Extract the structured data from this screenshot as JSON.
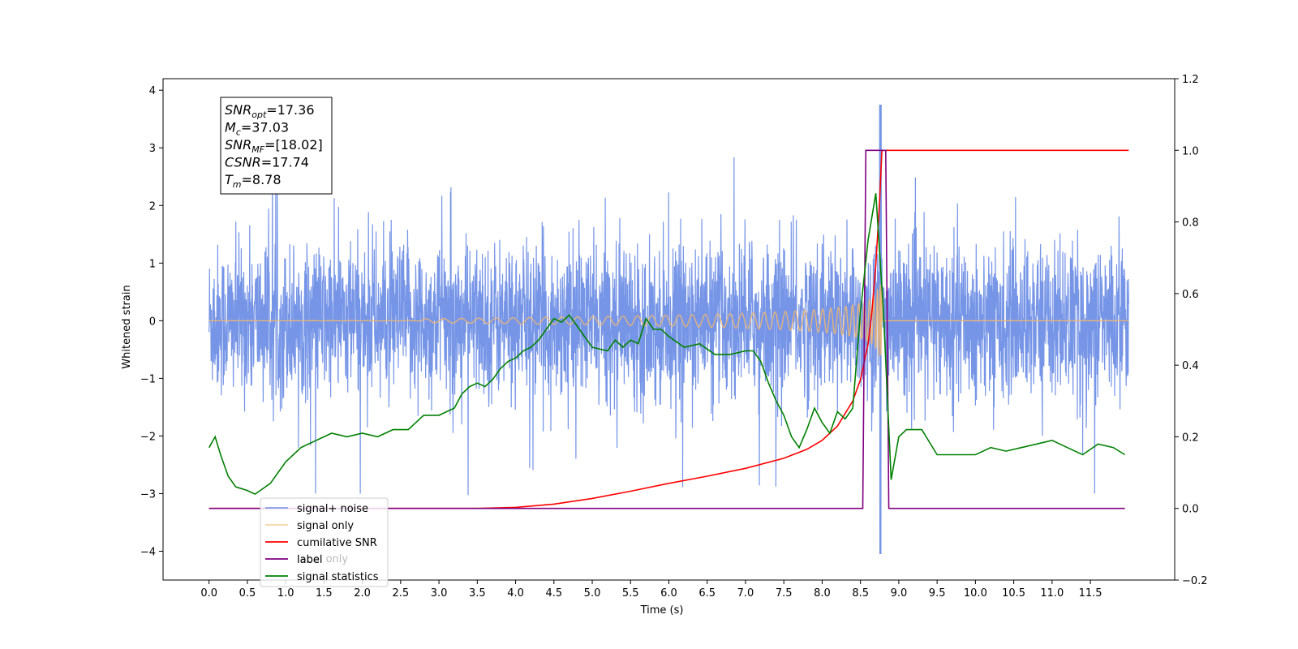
{
  "chart_data": {
    "type": "line",
    "xlabel": "Time (s)",
    "ylabel": "Whitened strain",
    "xlim": [
      -0.6,
      12.6
    ],
    "ylim": [
      -4.5,
      4.2
    ],
    "y2lim": [
      -0.2,
      1.2
    ],
    "xticks": [
      "0.0",
      "0.5",
      "1.0",
      "1.5",
      "2.0",
      "2.5",
      "3.0",
      "3.5",
      "4.0",
      "4.5",
      "5.0",
      "5.5",
      "6.0",
      "6.5",
      "7.0",
      "7.5",
      "8.0",
      "8.5",
      "9.0",
      "9.5",
      "10.0",
      "10.5",
      "11.0",
      "11.5"
    ],
    "yticks": [
      "4",
      "3",
      "2",
      "1",
      "0",
      "−1",
      "−2",
      "−3",
      "−4"
    ],
    "y2ticks": [
      "1.2",
      "1.0",
      "0.8",
      "0.6",
      "0.4",
      "0.2",
      "0.0",
      "−0.2"
    ],
    "grid": false,
    "legend_position": "bottom-left",
    "legend": [
      "signal+ noise",
      "signal only",
      "cumilative SNR",
      "label",
      "signal statistics",
      "label only"
    ],
    "colors": {
      "noise": "#6f8fe6",
      "signal": "#f5b86a",
      "snr": "#ff0000",
      "label": "#800080",
      "stats": "#008000"
    },
    "annotations": [
      {
        "base": "SNR",
        "sub": "opt",
        "value": "=17.36"
      },
      {
        "base": "M",
        "sub": "c",
        "value": "=37.03"
      },
      {
        "base": "SNR",
        "sub": "MF",
        "value": "=[18.02]"
      },
      {
        "base": "CSNR",
        "sub": "",
        "value": "=17.74"
      },
      {
        "base": "T",
        "sub": "m",
        "value": "=8.78"
      }
    ],
    "series": [
      {
        "name": "signal+ noise",
        "axis": "left",
        "description_range": [
          -4.1,
          3.8
        ],
        "t_start": 0.0,
        "t_end": 12.0
      },
      {
        "name": "signal only",
        "axis": "left",
        "merger_time": 8.78
      },
      {
        "name": "cumilative SNR",
        "axis": "right",
        "x": [
          0.0,
          3.5,
          4.0,
          4.5,
          5.0,
          5.5,
          6.0,
          6.5,
          7.0,
          7.5,
          7.8,
          8.0,
          8.2,
          8.4,
          8.5,
          8.6,
          8.65,
          8.7,
          8.75,
          8.78,
          12.0
        ],
        "y": [
          0.0,
          0.0,
          0.003,
          0.012,
          0.028,
          0.048,
          0.07,
          0.09,
          0.112,
          0.14,
          0.165,
          0.19,
          0.23,
          0.3,
          0.36,
          0.46,
          0.55,
          0.68,
          0.86,
          1.0,
          1.0
        ]
      },
      {
        "name": "label",
        "axis": "right",
        "x": [
          0.0,
          8.53,
          8.57,
          8.83,
          8.87,
          11.95
        ],
        "y": [
          0.0,
          0.0,
          1.0,
          1.0,
          0.0,
          0.0
        ]
      },
      {
        "name": "signal statistics",
        "axis": "right",
        "x": [
          0.0,
          0.08,
          0.15,
          0.25,
          0.35,
          0.5,
          0.6,
          0.8,
          1.0,
          1.2,
          1.4,
          1.5,
          1.6,
          1.8,
          2.0,
          2.2,
          2.4,
          2.6,
          2.8,
          3.0,
          3.2,
          3.3,
          3.4,
          3.5,
          3.6,
          3.7,
          3.8,
          3.9,
          4.0,
          4.1,
          4.2,
          4.3,
          4.4,
          4.5,
          4.6,
          4.7,
          4.8,
          5.0,
          5.2,
          5.3,
          5.4,
          5.5,
          5.6,
          5.7,
          5.8,
          5.9,
          6.0,
          6.2,
          6.4,
          6.6,
          6.8,
          7.0,
          7.1,
          7.2,
          7.3,
          7.4,
          7.5,
          7.6,
          7.7,
          7.8,
          7.9,
          8.0,
          8.1,
          8.2,
          8.3,
          8.4,
          8.5,
          8.6,
          8.7,
          8.8,
          8.9,
          9.0,
          9.1,
          9.3,
          9.5,
          9.6,
          9.8,
          10.0,
          10.2,
          10.4,
          10.6,
          10.8,
          11.0,
          11.2,
          11.4,
          11.6,
          11.8,
          11.95
        ],
        "y": [
          0.17,
          0.2,
          0.15,
          0.09,
          0.06,
          0.05,
          0.04,
          0.07,
          0.13,
          0.17,
          0.19,
          0.2,
          0.21,
          0.2,
          0.21,
          0.2,
          0.22,
          0.22,
          0.26,
          0.26,
          0.28,
          0.32,
          0.34,
          0.35,
          0.34,
          0.36,
          0.39,
          0.41,
          0.42,
          0.44,
          0.45,
          0.47,
          0.5,
          0.53,
          0.52,
          0.54,
          0.51,
          0.45,
          0.44,
          0.47,
          0.45,
          0.47,
          0.46,
          0.53,
          0.5,
          0.5,
          0.48,
          0.45,
          0.46,
          0.43,
          0.43,
          0.44,
          0.44,
          0.41,
          0.35,
          0.3,
          0.26,
          0.2,
          0.17,
          0.22,
          0.28,
          0.24,
          0.21,
          0.27,
          0.25,
          0.28,
          0.55,
          0.75,
          0.88,
          0.55,
          0.08,
          0.2,
          0.22,
          0.22,
          0.15,
          0.15,
          0.15,
          0.15,
          0.17,
          0.16,
          0.17,
          0.18,
          0.19,
          0.17,
          0.15,
          0.18,
          0.17,
          0.15
        ]
      }
    ]
  }
}
